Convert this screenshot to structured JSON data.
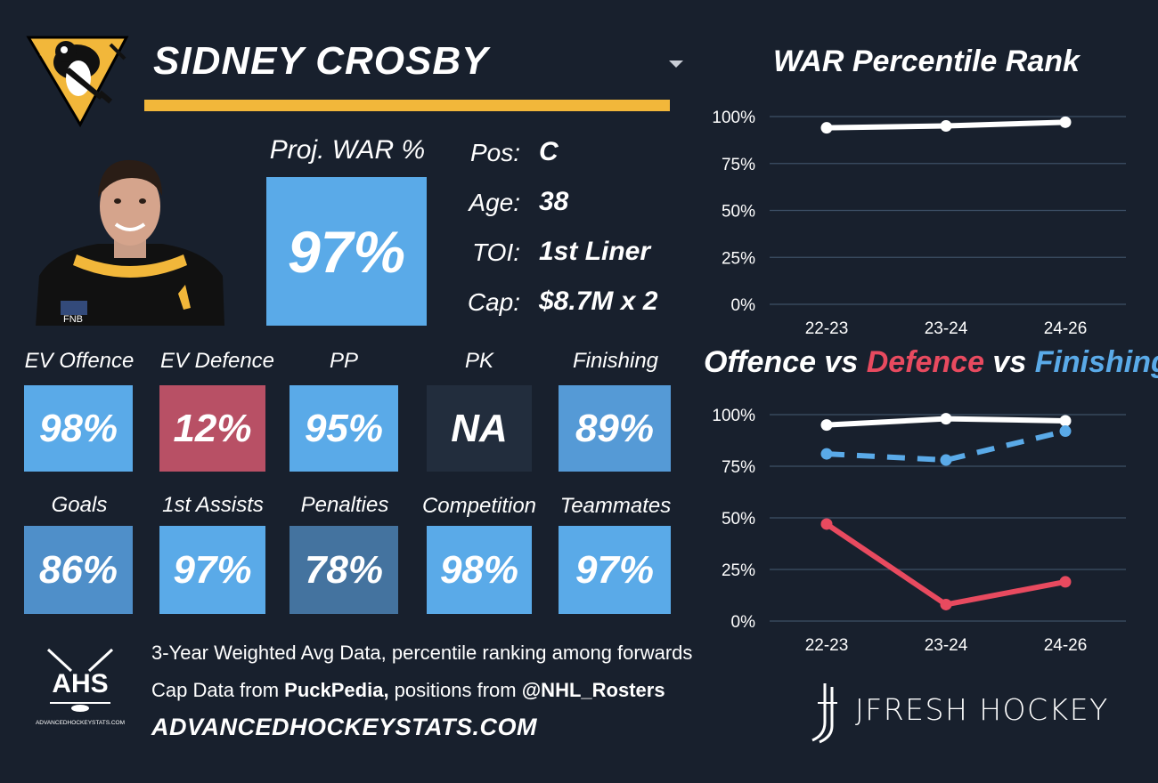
{
  "header": {
    "name": "SIDNEY CROSBY",
    "team_color": "#f2b73a"
  },
  "projection": {
    "label": "Proj. WAR %",
    "value": "97%",
    "color": "#5aaae8"
  },
  "info": {
    "pos_label": "Pos:",
    "pos_value": "C",
    "age_label": "Age:",
    "age_value": "38",
    "toi_label": "TOI:",
    "toi_value": "1st Liner",
    "cap_label": "Cap:",
    "cap_value": "$8.7M x 2"
  },
  "tiles": [
    {
      "label": "EV Offence",
      "value": "98%",
      "color": "#5aaae8"
    },
    {
      "label": "EV Defence",
      "value": "12%",
      "color": "#b85065"
    },
    {
      "label": "PP",
      "value": "95%",
      "color": "#5aaae8"
    },
    {
      "label": "PK",
      "value": "NA",
      "color": "#222d3d"
    },
    {
      "label": "Finishing",
      "value": "89%",
      "color": "#559ad6"
    },
    {
      "label": "Goals",
      "value": "86%",
      "color": "#4f8fc9"
    },
    {
      "label": "1st Assists",
      "value": "97%",
      "color": "#5aaae8"
    },
    {
      "label": "Penalties",
      "value": "78%",
      "color": "#44739f"
    },
    {
      "label": "Competition",
      "value": "98%",
      "color": "#5aaae8"
    },
    {
      "label": "Teammates",
      "value": "97%",
      "color": "#5aaae8"
    }
  ],
  "footer": {
    "line1": "3-Year Weighted Avg Data, percentile ranking among forwards",
    "line2_prefix": "Cap Data from ",
    "line2_source": "PuckPedia,",
    "line2_mid": " positions from ",
    "line2_handle": "@NHL_Rosters",
    "site": "ADVANCEDHOCKEYSTATS.COM",
    "ahs_text": "AHS",
    "ahs_sub": "ADVANCEDHOCKEYSTATS.COM",
    "brand": "JFRESH HOCKEY"
  },
  "chart_data": [
    {
      "type": "line",
      "title": "WAR Percentile Rank",
      "categories": [
        "22-23",
        "23-24",
        "24-26"
      ],
      "series": [
        {
          "values": [
            94,
            95,
            97
          ],
          "color": "#ffffff",
          "style": "solid"
        }
      ],
      "yticks": [
        "0%",
        "25%",
        "50%",
        "75%",
        "100%"
      ],
      "ylim": [
        0,
        100
      ],
      "grid": true
    },
    {
      "type": "line",
      "title_parts": [
        {
          "text": "Offence",
          "color": "#ffffff"
        },
        {
          "text": " vs ",
          "color": "#ffffff"
        },
        {
          "text": "Defence",
          "color": "#e84a5f"
        },
        {
          "text": " vs ",
          "color": "#ffffff"
        },
        {
          "text": "Finishing",
          "color": "#5aaae8"
        }
      ],
      "categories": [
        "22-23",
        "23-24",
        "24-26"
      ],
      "series": [
        {
          "values": [
            95,
            98,
            97
          ],
          "color": "#ffffff",
          "style": "solid"
        },
        {
          "values": [
            47,
            8,
            19
          ],
          "color": "#e84a5f",
          "style": "solid"
        },
        {
          "values": [
            81,
            78,
            92
          ],
          "color": "#5aaae8",
          "style": "dashed"
        }
      ],
      "yticks": [
        "0%",
        "25%",
        "50%",
        "75%",
        "100%"
      ],
      "ylim": [
        0,
        100
      ],
      "grid": true
    }
  ]
}
